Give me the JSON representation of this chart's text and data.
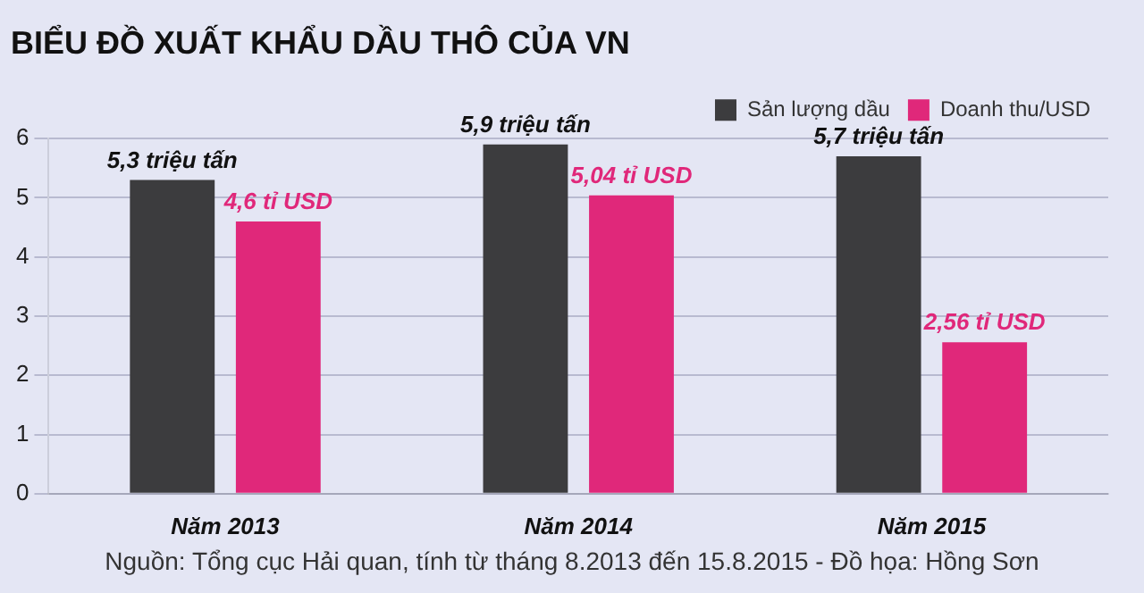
{
  "chart_data": {
    "type": "bar",
    "title": "BIỂU ĐỒ XUẤT KHẨU DẦU THÔ CỦA VN",
    "categories": [
      "Năm 2013",
      "Năm 2014",
      "Năm 2015"
    ],
    "series": [
      {
        "name": "Sản lượng dầu",
        "color": "#3c3c3e",
        "values": [
          5.3,
          5.9,
          5.7
        ],
        "value_labels": [
          "5,3 triệu tấn",
          "5,9 triệu tấn",
          "5,7 triệu tấn"
        ]
      },
      {
        "name": "Doanh thu/USD",
        "color": "#e0287a",
        "values": [
          4.6,
          5.04,
          2.56
        ],
        "value_labels": [
          "4,6 tỉ USD",
          "5,04 tỉ USD",
          "2,56 tỉ USD"
        ]
      }
    ],
    "ylim": [
      0,
      6
    ],
    "yticks": [
      0,
      1,
      2,
      3,
      4,
      5,
      6
    ],
    "grid": "y",
    "legend": "top right",
    "annotations": [
      "Nguồn: Tổng cục Hải quan, tính từ tháng 8.2013 đến 15.8.2015 - Đồ họa: Hồng Sơn"
    ]
  }
}
